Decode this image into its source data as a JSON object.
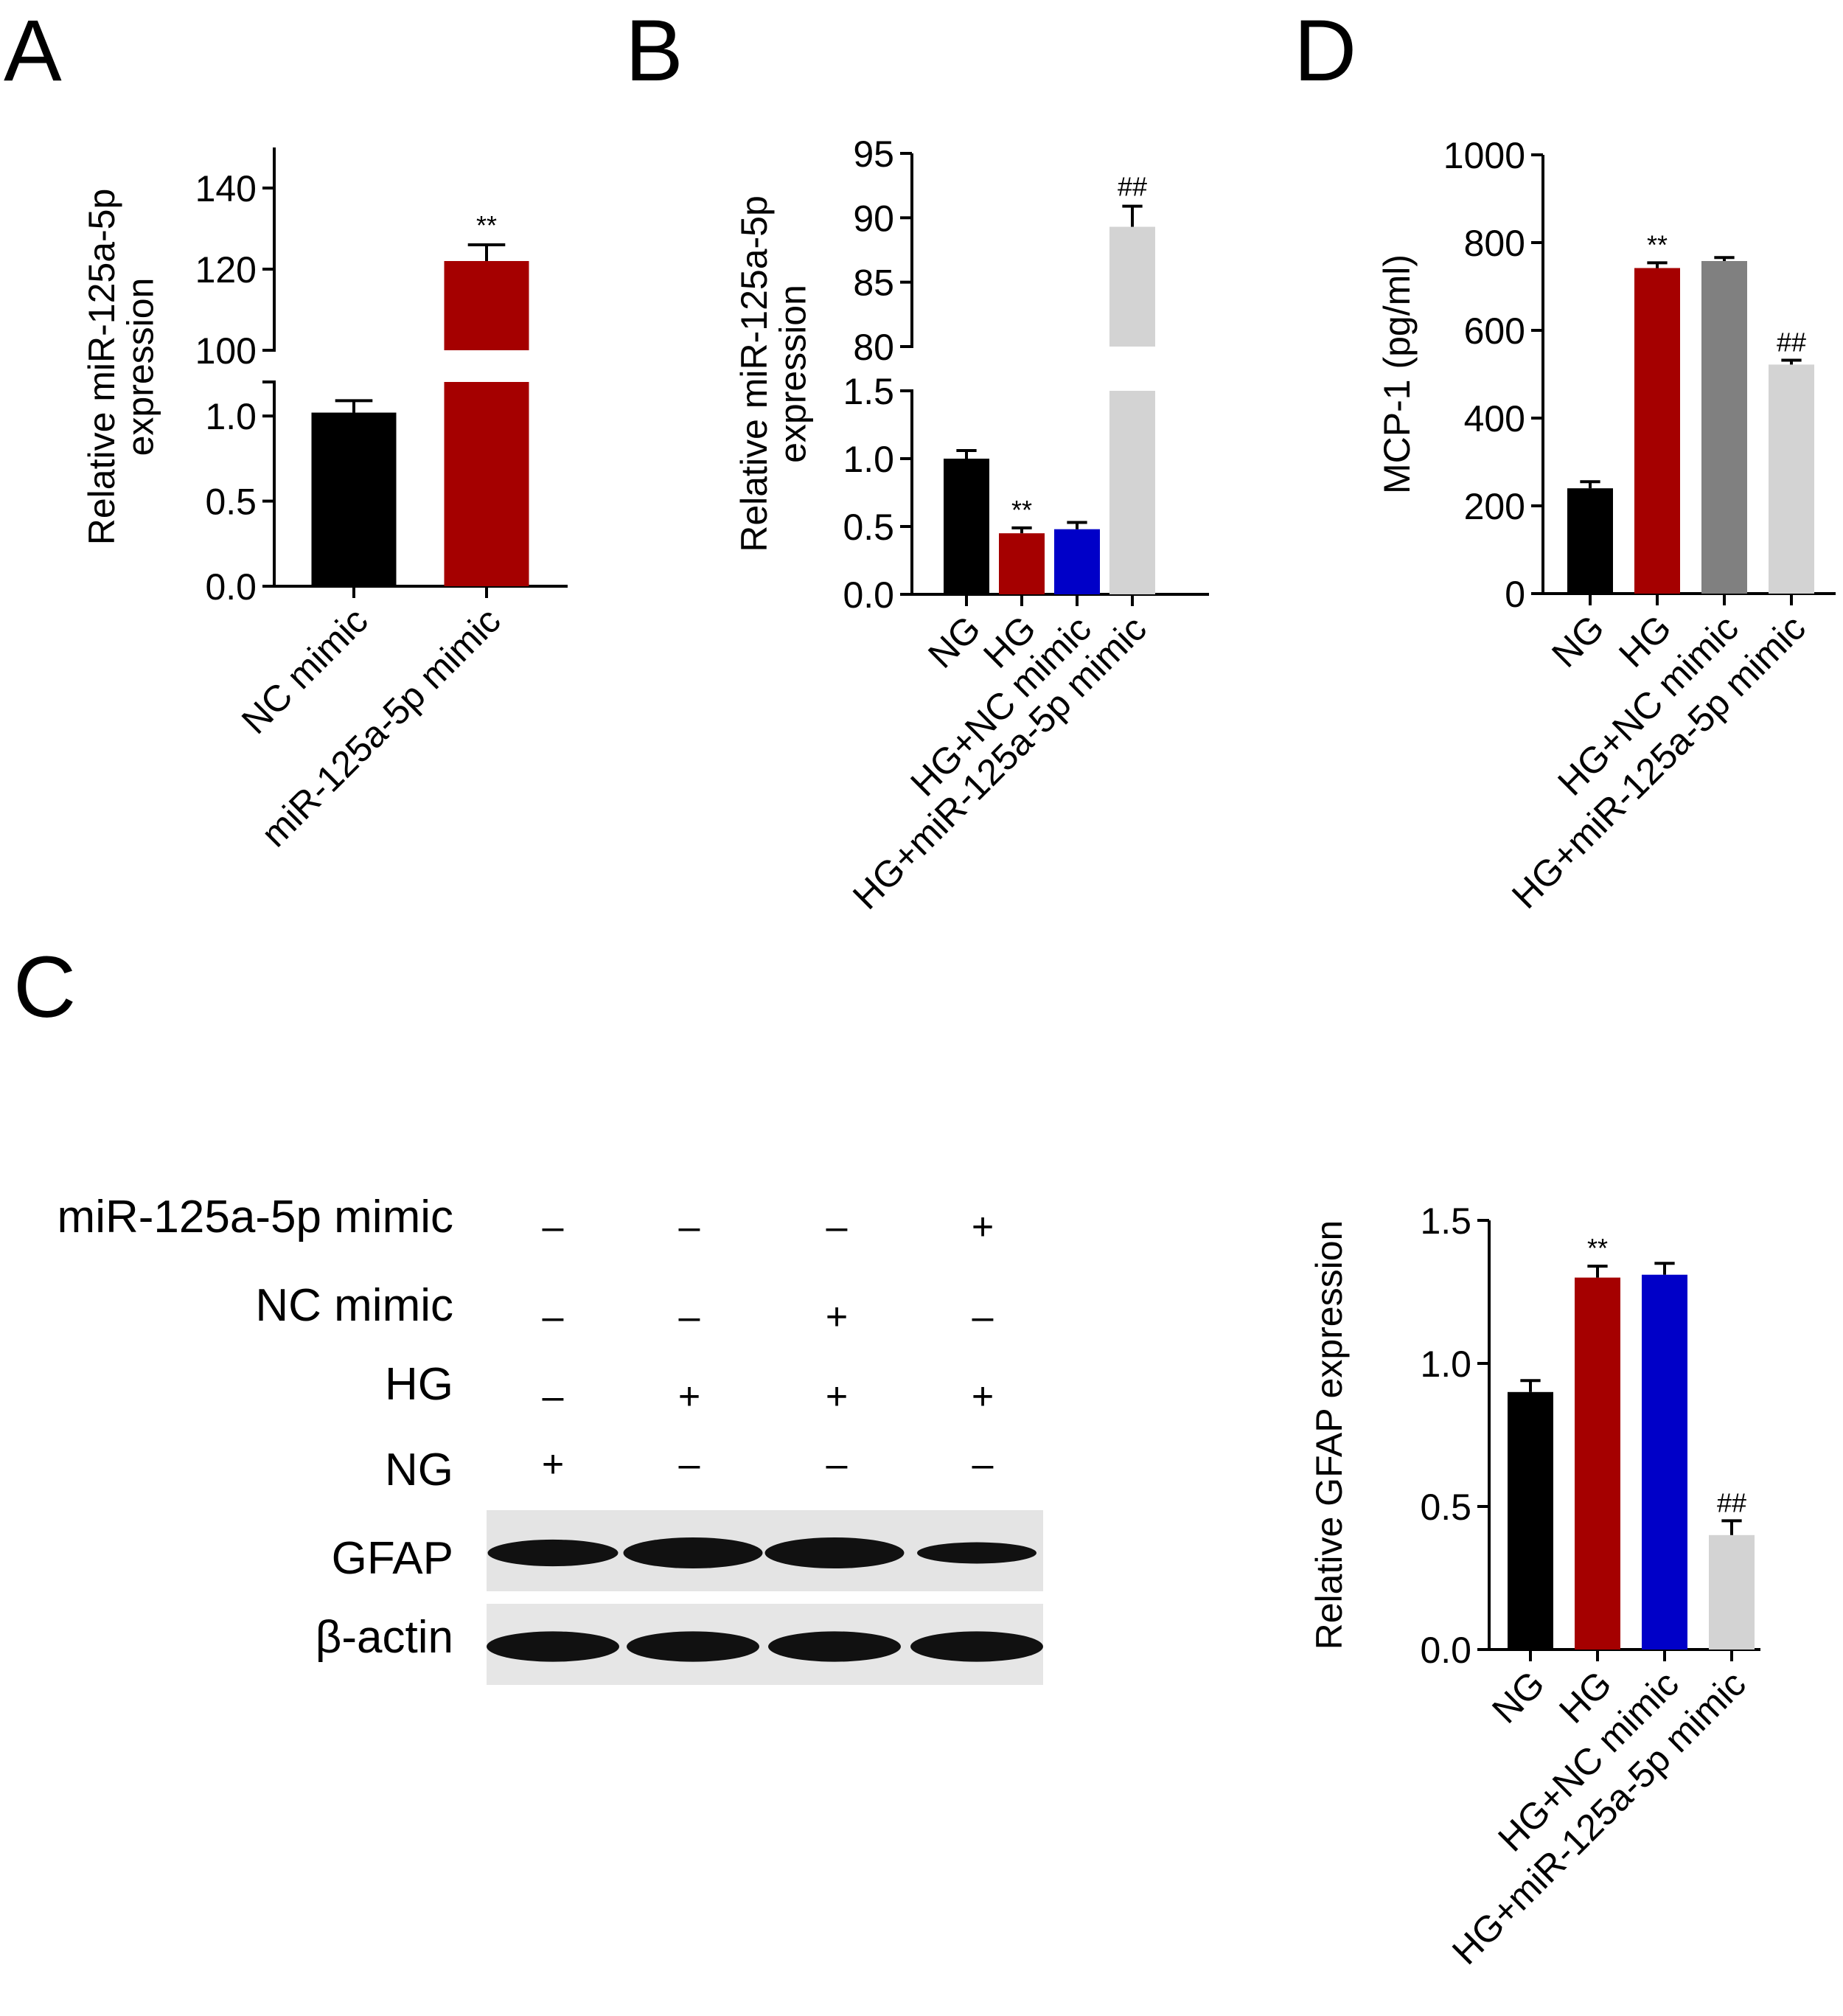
{
  "panels": {
    "a": {
      "letter": "A"
    },
    "b": {
      "letter": "B"
    },
    "c": {
      "letter": "C"
    },
    "d": {
      "letter": "D"
    }
  },
  "chart_data": [
    {
      "id": "A",
      "type": "bar",
      "broken_y_axis": true,
      "ylabel_lines": [
        "Relative miR-125a-5p",
        "expression"
      ],
      "categories": [
        "NC mimic",
        "miR-125a-5p mimic"
      ],
      "values": [
        1.02,
        122
      ],
      "errors": [
        0.07,
        4
      ],
      "colors": [
        "#000000",
        "#a50000"
      ],
      "annotations": [
        "",
        "**"
      ],
      "lower_ylim": [
        0,
        1.2
      ],
      "lower_ticks": [
        "0.0",
        "0.5",
        "1.0"
      ],
      "upper_ylim": [
        100,
        150
      ],
      "upper_ticks": [
        "100",
        "120",
        "140"
      ]
    },
    {
      "id": "B",
      "type": "bar",
      "broken_y_axis": true,
      "ylabel_lines": [
        "Relative miR-125a-5p",
        "expression"
      ],
      "categories": [
        "NG",
        "HG",
        "HG+NC mimic",
        "HG+miR-125a-5p mimic"
      ],
      "values": [
        1.0,
        0.45,
        0.48,
        89.3
      ],
      "errors": [
        0.06,
        0.04,
        0.05,
        1.6
      ],
      "colors": [
        "#000000",
        "#a50000",
        "#0000c8",
        "#d3d3d3"
      ],
      "annotations": [
        "",
        "**",
        "",
        "##"
      ],
      "lower_ylim": [
        0,
        1.5
      ],
      "lower_ticks": [
        "0.0",
        "0.5",
        "1.0",
        "1.5"
      ],
      "upper_ylim": [
        80,
        95
      ],
      "upper_ticks": [
        "80",
        "85",
        "90",
        "95"
      ]
    },
    {
      "id": "D",
      "type": "bar",
      "ylabel": "MCP-1 (pg/ml)",
      "categories": [
        "NG",
        "HG",
        "HG+NC mimic",
        "HG+miR-125a-5p mimic"
      ],
      "values": [
        240,
        742,
        758,
        522
      ],
      "errors": [
        15,
        12,
        8,
        10
      ],
      "colors": [
        "#000000",
        "#a50000",
        "#808080",
        "#d3d3d3"
      ],
      "annotations": [
        "",
        "**",
        "",
        "##"
      ],
      "ylim": [
        0,
        1000
      ],
      "ticks": [
        "0",
        "200",
        "400",
        "600",
        "800",
        "1000"
      ]
    },
    {
      "id": "C-quant",
      "type": "bar",
      "ylabel": "Relative GFAP expression",
      "categories": [
        "NG",
        "HG",
        "HG+NC mimic",
        "HG+miR-125a-5p mimic"
      ],
      "values": [
        0.9,
        1.3,
        1.31,
        0.4
      ],
      "errors": [
        0.04,
        0.04,
        0.04,
        0.05
      ],
      "colors": [
        "#000000",
        "#a50000",
        "#0000c8",
        "#d3d3d3"
      ],
      "annotations": [
        "",
        "**",
        "",
        "##"
      ],
      "ylim": [
        0,
        1.5
      ],
      "ticks": [
        "0.0",
        "0.5",
        "1.0",
        "1.5"
      ]
    }
  ],
  "western_blot": {
    "condition_rows": [
      {
        "label": "miR-125a-5p mimic",
        "signs": [
          "–",
          "–",
          "–",
          "+"
        ]
      },
      {
        "label": "NC mimic",
        "signs": [
          "–",
          "–",
          "+",
          "–"
        ]
      },
      {
        "label": "HG",
        "signs": [
          "–",
          "+",
          "+",
          "+"
        ]
      },
      {
        "label": "NG",
        "signs": [
          "+",
          "–",
          "–",
          "–"
        ]
      }
    ],
    "blots": [
      {
        "label": "GFAP",
        "band_intensity": [
          0.9,
          1.3,
          1.31,
          0.4
        ]
      },
      {
        "label": "β-actin",
        "band_intensity": [
          1,
          1,
          1,
          1
        ]
      }
    ]
  }
}
